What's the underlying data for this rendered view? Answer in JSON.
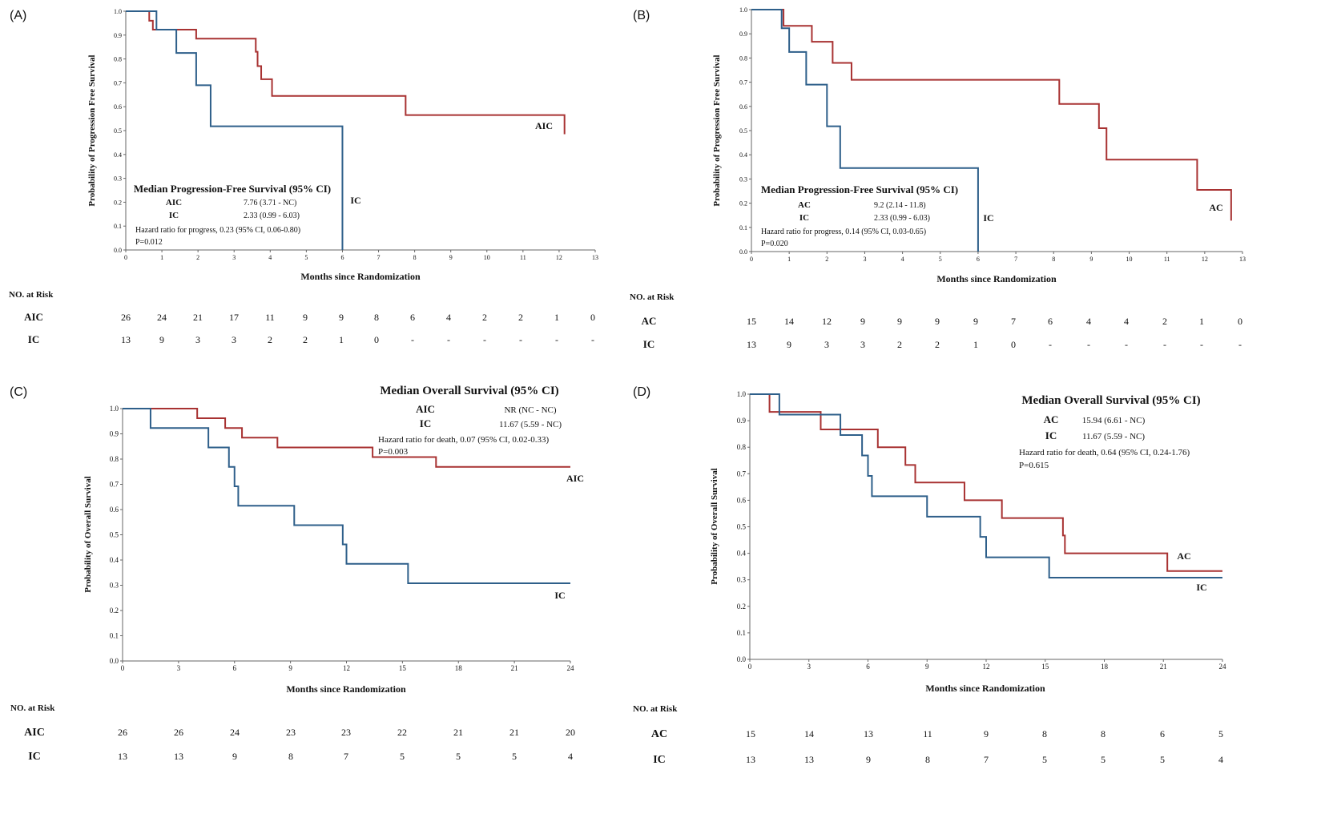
{
  "colors": {
    "red": "#a83232",
    "blue": "#2e5f8a",
    "axis": "#666666",
    "text": "#111111"
  },
  "chart_data": [
    {
      "panel": "(A)",
      "type": "line",
      "step": true,
      "ylabel": "Probability of Progression Free Survival",
      "xlabel": "Months since Randomization",
      "xlim": [
        0,
        13
      ],
      "ylim": [
        0,
        1
      ],
      "xticks": [
        "0",
        "1",
        "2",
        "3",
        "4",
        "5",
        "6",
        "7",
        "8",
        "9",
        "10",
        "11",
        "12",
        "13"
      ],
      "yticks": [
        "0.0",
        "0.1",
        "0.2",
        "0.3",
        "0.4",
        "0.5",
        "0.6",
        "0.7",
        "0.8",
        "0.9",
        "1.0"
      ],
      "series": [
        {
          "name": "AIC",
          "color": "red",
          "x": [
            0,
            0.65,
            0.75,
            1.0,
            1.95,
            3.35,
            3.6,
            3.65,
            3.75,
            4.05,
            7.3,
            7.75,
            12.15
          ],
          "y": [
            1.0,
            0.96,
            0.923,
            0.923,
            0.885,
            0.885,
            0.83,
            0.77,
            0.715,
            0.645,
            0.645,
            0.565,
            0.485
          ]
        },
        {
          "name": "IC",
          "color": "blue",
          "x": [
            0,
            0.75,
            0.85,
            1.0,
            1.4,
            1.95,
            2.35,
            6.0,
            6.0
          ],
          "y": [
            1.0,
            1.0,
            0.923,
            0.923,
            0.825,
            0.69,
            0.518,
            0.345,
            0.0
          ]
        }
      ],
      "annotations": {
        "title": "Median Progression-Free Survival (95% CI)",
        "rows": [
          {
            "label": "AIC",
            "value": "7.76 (3.71 - NC)"
          },
          {
            "label": "IC",
            "value": "2.33 (0.99 - 6.03)"
          }
        ],
        "hr": "Hazard ratio for progress, 0.23 (95% CI, 0.06-0.80)",
        "p": "P=0.012"
      },
      "risk_table": {
        "header": "NO. at Risk",
        "times": [
          0,
          1,
          2,
          3,
          4,
          5,
          6,
          7,
          8,
          9,
          10,
          11,
          12,
          13
        ],
        "rows": [
          {
            "label": "AIC",
            "values": [
              "26",
              "24",
              "21",
              "17",
              "11",
              "9",
              "9",
              "8",
              "6",
              "4",
              "2",
              "2",
              "1",
              "0"
            ]
          },
          {
            "label": "IC",
            "values": [
              "13",
              "9",
              "3",
              "3",
              "2",
              "2",
              "1",
              "0",
              "-",
              "-",
              "-",
              "-",
              "-",
              "-"
            ]
          }
        ]
      }
    },
    {
      "panel": "(B)",
      "type": "line",
      "step": true,
      "ylabel": "Probability of Progression Free Survival",
      "xlabel": "Months since Randomization",
      "xlim": [
        0,
        13
      ],
      "ylim": [
        0,
        1
      ],
      "xticks": [
        "0",
        "1",
        "2",
        "3",
        "4",
        "5",
        "6",
        "7",
        "8",
        "9",
        "10",
        "11",
        "12",
        "13"
      ],
      "yticks": [
        "0.0",
        "0.1",
        "0.2",
        "0.3",
        "0.4",
        "0.5",
        "0.6",
        "0.7",
        "0.8",
        "0.9",
        "1.0"
      ],
      "series": [
        {
          "name": "AC",
          "color": "red",
          "x": [
            0,
            0.85,
            1.6,
            2.15,
            2.65,
            7.35,
            8.15,
            9.2,
            9.4,
            11.8,
            12.7
          ],
          "y": [
            1.0,
            0.933,
            0.867,
            0.78,
            0.71,
            0.71,
            0.61,
            0.51,
            0.38,
            0.255,
            0.128
          ]
        },
        {
          "name": "IC",
          "color": "blue",
          "x": [
            0,
            0.8,
            1.0,
            1.45,
            2.0,
            2.35,
            6.0,
            6.0
          ],
          "y": [
            1.0,
            0.923,
            0.825,
            0.69,
            0.518,
            0.345,
            0.345,
            0.0
          ]
        }
      ],
      "annotations": {
        "title": "Median Progression-Free Survival (95% CI)",
        "rows": [
          {
            "label": "AC",
            "value": "9.2 (2.14 - 11.8)"
          },
          {
            "label": "IC",
            "value": "2.33 (0.99 - 6.03)"
          }
        ],
        "hr": "Hazard ratio for progress, 0.14 (95% CI, 0.03-0.65)",
        "p": "P=0.020"
      },
      "risk_table": {
        "header": "NO. at Risk",
        "times": [
          0,
          1,
          2,
          3,
          4,
          5,
          6,
          7,
          8,
          9,
          10,
          11,
          12,
          13
        ],
        "rows": [
          {
            "label": "AC",
            "values": [
              "15",
              "14",
              "12",
              "9",
              "9",
              "9",
              "9",
              "7",
              "6",
              "4",
              "4",
              "2",
              "1",
              "0"
            ]
          },
          {
            "label": "IC",
            "values": [
              "13",
              "9",
              "3",
              "3",
              "2",
              "2",
              "1",
              "0",
              "-",
              "-",
              "-",
              "-",
              "-",
              "-"
            ]
          }
        ]
      }
    },
    {
      "panel": "(C)",
      "type": "line",
      "step": true,
      "ylabel": "Probability of Overall Survival",
      "xlabel": "Months since Randomization",
      "xlim": [
        0,
        24
      ],
      "ylim": [
        0,
        1
      ],
      "xticks": [
        "0",
        "3",
        "6",
        "9",
        "12",
        "15",
        "18",
        "21",
        "24"
      ],
      "yticks": [
        "0.0",
        "0.1",
        "0.2",
        "0.3",
        "0.4",
        "0.5",
        "0.6",
        "0.7",
        "0.8",
        "0.9",
        "1.0"
      ],
      "series": [
        {
          "name": "AIC",
          "color": "red",
          "x": [
            0,
            4.0,
            5.5,
            6.4,
            8.3,
            13.4,
            16.8,
            24.0
          ],
          "y": [
            1.0,
            0.962,
            0.923,
            0.885,
            0.846,
            0.808,
            0.769,
            0.769
          ]
        },
        {
          "name": "IC",
          "color": "blue",
          "x": [
            0,
            1.5,
            4.6,
            5.7,
            6.0,
            6.2,
            9.2,
            11.8,
            12.0,
            15.3,
            24.0
          ],
          "y": [
            1.0,
            0.923,
            0.846,
            0.769,
            0.692,
            0.615,
            0.538,
            0.462,
            0.385,
            0.308,
            0.308
          ]
        }
      ],
      "annotations": {
        "title": "Median Overall Survival (95% CI)",
        "rows": [
          {
            "label": "AIC",
            "value": "NR (NC - NC)"
          },
          {
            "label": "IC",
            "value": "11.67 (5.59 - NC)"
          }
        ],
        "hr": "Hazard ratio for death, 0.07 (95% CI, 0.02-0.33)",
        "p": "P=0.003"
      },
      "risk_table": {
        "header": "NO. at Risk",
        "times": [
          0,
          3,
          6,
          9,
          12,
          15,
          18,
          21,
          24
        ],
        "rows": [
          {
            "label": "AIC",
            "values": [
              "26",
              "26",
              "24",
              "23",
              "23",
              "22",
              "21",
              "21",
              "20"
            ]
          },
          {
            "label": "IC",
            "values": [
              "13",
              "13",
              "9",
              "8",
              "7",
              "5",
              "5",
              "5",
              "4"
            ]
          }
        ]
      }
    },
    {
      "panel": "(D)",
      "type": "line",
      "step": true,
      "ylabel": "Probability of Overall Survival",
      "xlabel": "Months since Randomization",
      "xlim": [
        0,
        24
      ],
      "ylim": [
        0,
        1
      ],
      "xticks": [
        "0",
        "3",
        "6",
        "9",
        "12",
        "15",
        "18",
        "21",
        "24"
      ],
      "yticks": [
        "0.0",
        "0.1",
        "0.2",
        "0.3",
        "0.4",
        "0.5",
        "0.6",
        "0.7",
        "0.8",
        "0.9",
        "1.0"
      ],
      "series": [
        {
          "name": "AC",
          "color": "red",
          "x": [
            0,
            1.0,
            3.6,
            6.5,
            7.9,
            8.4,
            10.9,
            12.8,
            15.9,
            16.0,
            21.2,
            24.0
          ],
          "y": [
            1.0,
            0.933,
            0.867,
            0.8,
            0.733,
            0.667,
            0.6,
            0.533,
            0.467,
            0.4,
            0.333,
            0.333
          ]
        },
        {
          "name": "IC",
          "color": "blue",
          "x": [
            0,
            1.5,
            4.6,
            5.7,
            6.0,
            6.2,
            9.0,
            11.7,
            12.0,
            15.2,
            24.0
          ],
          "y": [
            1.0,
            0.923,
            0.846,
            0.769,
            0.692,
            0.615,
            0.538,
            0.462,
            0.385,
            0.308,
            0.308
          ]
        }
      ],
      "annotations": {
        "title": "Median Overall Survival (95% CI)",
        "rows": [
          {
            "label": "AC",
            "value": "15.94 (6.61 - NC)"
          },
          {
            "label": "IC",
            "value": "11.67 (5.59 - NC)"
          }
        ],
        "hr": "Hazard ratio for death, 0.64 (95% CI, 0.24-1.76)",
        "p": "P=0.615"
      },
      "risk_table": {
        "header": "NO. at Risk",
        "times": [
          0,
          3,
          6,
          9,
          12,
          15,
          18,
          21,
          24
        ],
        "rows": [
          {
            "label": "AC",
            "values": [
              "15",
              "14",
              "13",
              "11",
              "9",
              "8",
              "8",
              "6",
              "5"
            ]
          },
          {
            "label": "IC",
            "values": [
              "13",
              "13",
              "9",
              "8",
              "7",
              "5",
              "5",
              "5",
              "4"
            ]
          }
        ]
      }
    }
  ]
}
